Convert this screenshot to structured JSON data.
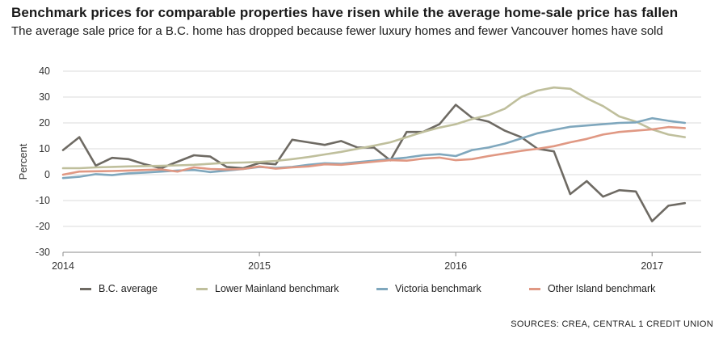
{
  "title": "Benchmark prices for comparable properties have risen while the average home-sale price has fallen",
  "subtitle": "The average sale price for a B.C. home has dropped because fewer luxury homes and fewer Vancouver homes have sold",
  "source": "SOURCES: CREA, CENTRAL 1 CREDIT UNION",
  "chart_data": {
    "type": "line",
    "ylabel": "Percent",
    "xlabel": "",
    "ylim": [
      -30,
      40
    ],
    "yticks": [
      40,
      30,
      20,
      10,
      0,
      -10,
      -20,
      -30
    ],
    "xlim": [
      2014,
      2017.25
    ],
    "xtick_labels": [
      "2014",
      "2015",
      "2016",
      "2017"
    ],
    "xtick_values": [
      2014,
      2015,
      2016,
      2017
    ],
    "grid": "horizontal",
    "legend_position": "bottom",
    "x": [
      2014.0,
      2014.083,
      2014.167,
      2014.25,
      2014.333,
      2014.417,
      2014.5,
      2014.583,
      2014.667,
      2014.75,
      2014.833,
      2014.917,
      2015.0,
      2015.083,
      2015.167,
      2015.25,
      2015.333,
      2015.417,
      2015.5,
      2015.583,
      2015.667,
      2015.75,
      2015.833,
      2015.917,
      2016.0,
      2016.083,
      2016.167,
      2016.25,
      2016.333,
      2016.417,
      2016.5,
      2016.583,
      2016.667,
      2016.75,
      2016.833,
      2016.917,
      2017.0,
      2017.083,
      2017.167
    ],
    "series": [
      {
        "name": "B.C. average",
        "color": "#6e6a63",
        "values": [
          9.5,
          14.5,
          3.5,
          6.5,
          6,
          4,
          2.5,
          5,
          7.5,
          7,
          3,
          2.5,
          4.5,
          4,
          13.5,
          12.5,
          11.5,
          13,
          10.5,
          10.5,
          5.5,
          16.5,
          16.5,
          19.5,
          27,
          22,
          20.5,
          17,
          14.5,
          10,
          9,
          -7.5,
          -2.5,
          -8.5,
          -6,
          -6.5,
          -18,
          -12,
          -11
        ]
      },
      {
        "name": "Lower Mainland benchmark",
        "color": "#bfbf9c",
        "values": [
          2.5,
          2.5,
          2.8,
          3,
          3.2,
          3.3,
          3.4,
          3.6,
          3.8,
          4.2,
          4.6,
          4.7,
          4.9,
          5.3,
          6,
          6.8,
          7.8,
          8.8,
          10,
          11.2,
          12.5,
          14.5,
          16.5,
          18.2,
          19.5,
          21.5,
          23,
          25.5,
          30,
          32.5,
          33.7,
          33.2,
          29.5,
          26.5,
          22.5,
          20.5,
          17.5,
          15.5,
          14.5
        ]
      },
      {
        "name": "Victoria benchmark",
        "color": "#7fa7bd",
        "values": [
          -1.3,
          -0.8,
          0.2,
          -0.2,
          0.5,
          0.8,
          1.2,
          1.6,
          1.8,
          1.0,
          1.6,
          2.2,
          3,
          2.6,
          3.0,
          3.8,
          4.4,
          4.2,
          4.8,
          5.4,
          6.0,
          6.6,
          7.5,
          7.9,
          7.2,
          9.5,
          10.5,
          12,
          14,
          16,
          17.3,
          18.5,
          19.0,
          19.5,
          20,
          20.2,
          21.8,
          20.8,
          20
        ]
      },
      {
        "name": "Other Island benchmark",
        "color": "#e09883",
        "values": [
          0,
          1.2,
          1.3,
          1.4,
          1.6,
          1.8,
          2.0,
          1.2,
          2.8,
          2.2,
          2.0,
          2.2,
          3.2,
          2.3,
          2.8,
          3.2,
          4.0,
          3.8,
          4.4,
          5.0,
          5.6,
          5.4,
          6.2,
          6.6,
          5.6,
          6.0,
          7.2,
          8.2,
          9.2,
          10.0,
          11.0,
          12.5,
          13.8,
          15.5,
          16.5,
          17.0,
          17.5,
          18.4,
          18.0
        ]
      }
    ]
  }
}
